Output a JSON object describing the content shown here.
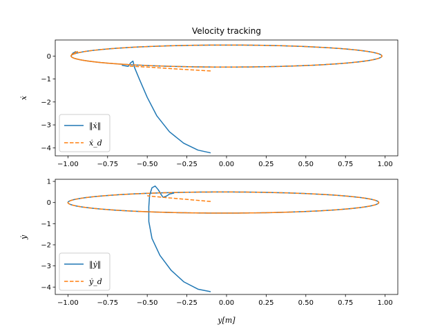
{
  "chart_data": [
    {
      "type": "line",
      "title": "Velocity tracking",
      "xlabel": "",
      "ylabel": "ẋ",
      "xlim": [
        -1.08,
        1.08
      ],
      "ylim": [
        -4.35,
        0.7
      ],
      "xticks": [
        -1.0,
        -0.75,
        -0.5,
        -0.25,
        0.0,
        0.25,
        0.5,
        0.75,
        1.0
      ],
      "xtick_labels": [
        "−1.00",
        "−0.75",
        "−0.50",
        "−0.25",
        "0.00",
        "0.25",
        "0.50",
        "0.75",
        "1.00"
      ],
      "yticks": [
        -4,
        -3,
        -2,
        -1,
        0
      ],
      "ytick_labels": [
        "−4",
        "−3",
        "−2",
        "−1",
        "0"
      ],
      "legend_loc": "lower-left",
      "grid": false,
      "series": [
        {
          "name": "‖ẋ‖",
          "color": "#1f77b4",
          "style": "solid",
          "points": [
            [
              -0.1,
              -4.22
            ],
            [
              -0.18,
              -4.1
            ],
            [
              -0.27,
              -3.8
            ],
            [
              -0.36,
              -3.3
            ],
            [
              -0.44,
              -2.6
            ],
            [
              -0.5,
              -1.8
            ],
            [
              -0.55,
              -1.0
            ],
            [
              -0.58,
              -0.5
            ],
            [
              -0.59,
              -0.22
            ],
            [
              -0.605,
              -0.3
            ],
            [
              -0.62,
              -0.45
            ],
            [
              -0.66,
              -0.4
            ]
          ],
          "ellipse": {
            "cx": 0.0,
            "cy": 0.0,
            "rx": 0.98,
            "ry": 0.48,
            "x_start": -0.62,
            "x_end": -0.98
          },
          "tail": [
            [
              -0.98,
              0.02
            ],
            [
              -0.97,
              0.12
            ],
            [
              -0.95,
              0.2
            ]
          ]
        },
        {
          "name": "ẋ_d",
          "color": "#ff7f0e",
          "style": "dashed",
          "points": [
            [
              -0.1,
              -0.65
            ],
            [
              -0.3,
              -0.57
            ],
            [
              -0.5,
              -0.48
            ],
            [
              -0.62,
              -0.44
            ]
          ],
          "ellipse": {
            "cx": 0.0,
            "cy": 0.0,
            "rx": 0.98,
            "ry": 0.48,
            "x_start": -0.62,
            "x_end": -0.98
          },
          "tail": [
            [
              -0.98,
              0.02
            ],
            [
              -0.97,
              0.12
            ],
            [
              -0.93,
              0.22
            ]
          ]
        }
      ]
    },
    {
      "type": "line",
      "title": "",
      "xlabel": "y[m]",
      "ylabel": "ẏ",
      "xlim": [
        -1.08,
        1.08
      ],
      "ylim": [
        -4.35,
        1.1
      ],
      "xticks": [
        -1.0,
        -0.75,
        -0.5,
        -0.25,
        0.0,
        0.25,
        0.5,
        0.75,
        1.0
      ],
      "xtick_labels": [
        "−1.00",
        "−0.75",
        "−0.50",
        "−0.25",
        "0.00",
        "0.25",
        "0.50",
        "0.75",
        "1.00"
      ],
      "yticks": [
        -4,
        -3,
        -2,
        -1,
        0,
        1
      ],
      "ytick_labels": [
        "−4",
        "−3",
        "−2",
        "−1",
        "0",
        "1"
      ],
      "legend_loc": "lower-left",
      "grid": false,
      "series": [
        {
          "name": "‖ẏ‖",
          "color": "#1f77b4",
          "style": "solid",
          "points": [
            [
              -0.1,
              -4.22
            ],
            [
              -0.18,
              -4.1
            ],
            [
              -0.27,
              -3.75
            ],
            [
              -0.35,
              -3.2
            ],
            [
              -0.42,
              -2.5
            ],
            [
              -0.47,
              -1.7
            ],
            [
              -0.49,
              -0.9
            ],
            [
              -0.49,
              -0.2
            ],
            [
              -0.485,
              0.35
            ],
            [
              -0.47,
              0.7
            ],
            [
              -0.45,
              0.78
            ],
            [
              -0.43,
              0.6
            ],
            [
              -0.41,
              0.35
            ],
            [
              -0.4,
              0.25
            ],
            [
              -0.38,
              0.3
            ],
            [
              -0.36,
              0.4
            ],
            [
              -0.33,
              0.45
            ]
          ],
          "ellipse": {
            "cx": -0.02,
            "cy": 0.0,
            "rx": 0.98,
            "ry": 0.5,
            "x_start": -0.33,
            "x_end": 0.4
          }
        },
        {
          "name": "ẏ_d",
          "color": "#ff7f0e",
          "style": "dashed",
          "points": [
            [
              -0.1,
              0.05
            ],
            [
              -0.3,
              0.18
            ],
            [
              -0.45,
              0.28
            ],
            [
              -0.5,
              0.32
            ]
          ],
          "ellipse": {
            "cx": -0.02,
            "cy": 0.0,
            "rx": 0.98,
            "ry": 0.5,
            "x_start": -0.5,
            "x_end": 0.4
          }
        }
      ]
    }
  ]
}
